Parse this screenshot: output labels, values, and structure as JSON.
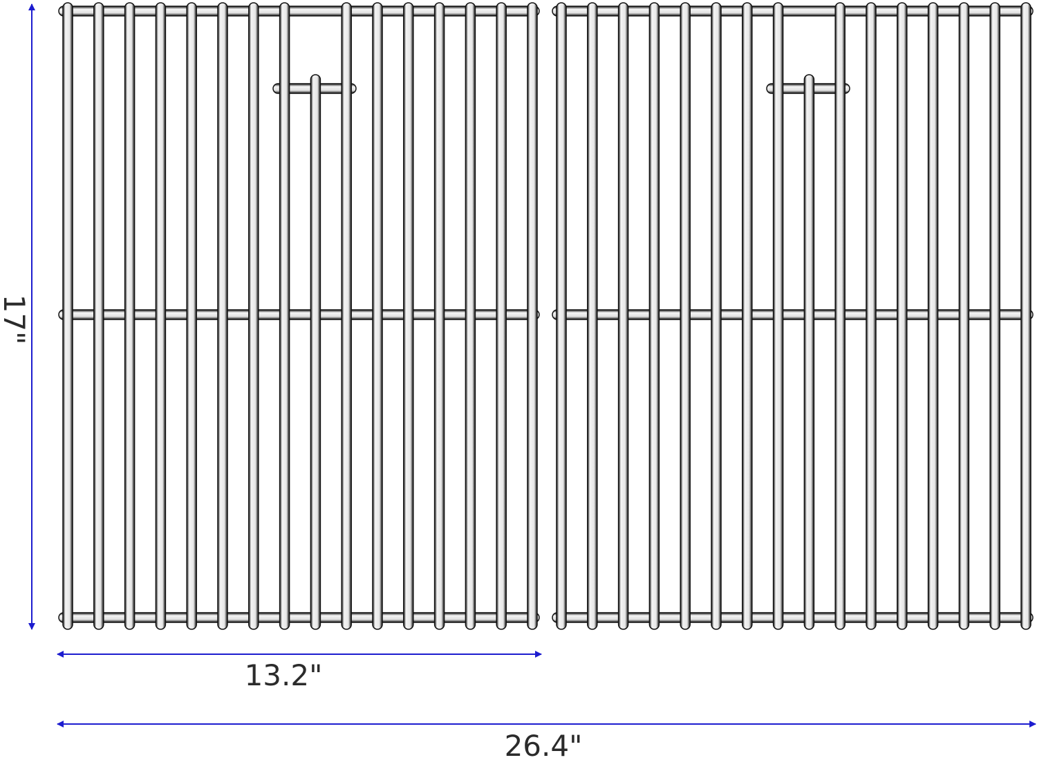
{
  "diagram": {
    "grate_count": 2,
    "bars_per_grate": 16,
    "colors": {
      "dimension_arrow": "#1c1ccf",
      "text": "#2b2b2b",
      "outline": "#111111",
      "metal_highlight": "#f2f2f2"
    },
    "dimensions": {
      "height": "17\"",
      "single_width": "13.2\"",
      "total_width": "26.4\""
    }
  }
}
